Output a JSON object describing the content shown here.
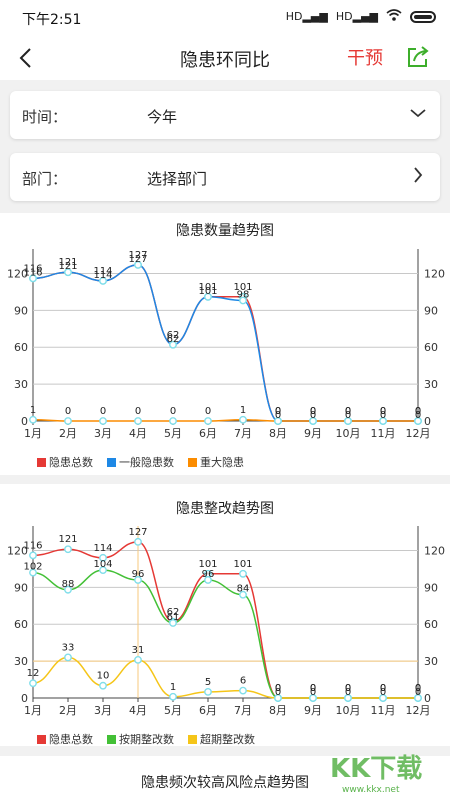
{
  "status": {
    "time": "下午2:51",
    "net1": "HD",
    "net2": "HD"
  },
  "header": {
    "title": "隐患环同比",
    "action_label": "干预"
  },
  "filters": {
    "time": {
      "label": "时间：",
      "value": "今年"
    },
    "dept": {
      "label": "部门：",
      "value": "选择部门"
    }
  },
  "watermark": {
    "text": "KK下载",
    "url": "www.kkx.net"
  },
  "chart_data": [
    {
      "type": "line",
      "title": "隐患数量趋势图",
      "categories": [
        "1月",
        "2月",
        "3月",
        "4月",
        "5月",
        "6月",
        "7月",
        "8月",
        "9月",
        "10月",
        "11月",
        "12月"
      ],
      "yticks": [
        0,
        30,
        60,
        90,
        120
      ],
      "ylim": [
        0,
        135
      ],
      "legend_position": "bottom-left",
      "grid": true,
      "series": [
        {
          "name": "隐患总数",
          "color": "#e53935",
          "values": [
            116,
            121,
            114,
            127,
            62,
            101,
            101,
            0,
            0,
            0,
            0,
            0
          ]
        },
        {
          "name": "一般隐患数",
          "color": "#1e88e5",
          "values": [
            116,
            121,
            114,
            127,
            62,
            101,
            98,
            0,
            0,
            0,
            0,
            0
          ]
        },
        {
          "name": "重大隐患",
          "color": "#fb8c00",
          "values": [
            1,
            0,
            0,
            0,
            0,
            0,
            1,
            0,
            0,
            0,
            0,
            0
          ]
        }
      ]
    },
    {
      "type": "line",
      "title": "隐患整改趋势图",
      "categories": [
        "1月",
        "2月",
        "3月",
        "4月",
        "5月",
        "6月",
        "7月",
        "8月",
        "9月",
        "10月",
        "11月",
        "12月"
      ],
      "yticks": [
        0,
        30,
        60,
        90,
        120
      ],
      "ylim": [
        0,
        135
      ],
      "legend_position": "bottom-left",
      "grid": true,
      "series": [
        {
          "name": "隐患总数",
          "color": "#e53935",
          "values": [
            116,
            121,
            114,
            127,
            62,
            101,
            101,
            0,
            0,
            0,
            0,
            0
          ]
        },
        {
          "name": "按期整改数",
          "color": "#43c036",
          "values": [
            102,
            88,
            104,
            96,
            61,
            96,
            84,
            0,
            0,
            0,
            0,
            0
          ]
        },
        {
          "name": "超期整改数",
          "color": "#f5c518",
          "values": [
            12,
            33,
            10,
            31,
            1,
            5,
            6,
            0,
            0,
            0,
            0,
            0
          ]
        }
      ]
    }
  ],
  "section3": {
    "title": "隐患频次较高风险点趋势图"
  }
}
